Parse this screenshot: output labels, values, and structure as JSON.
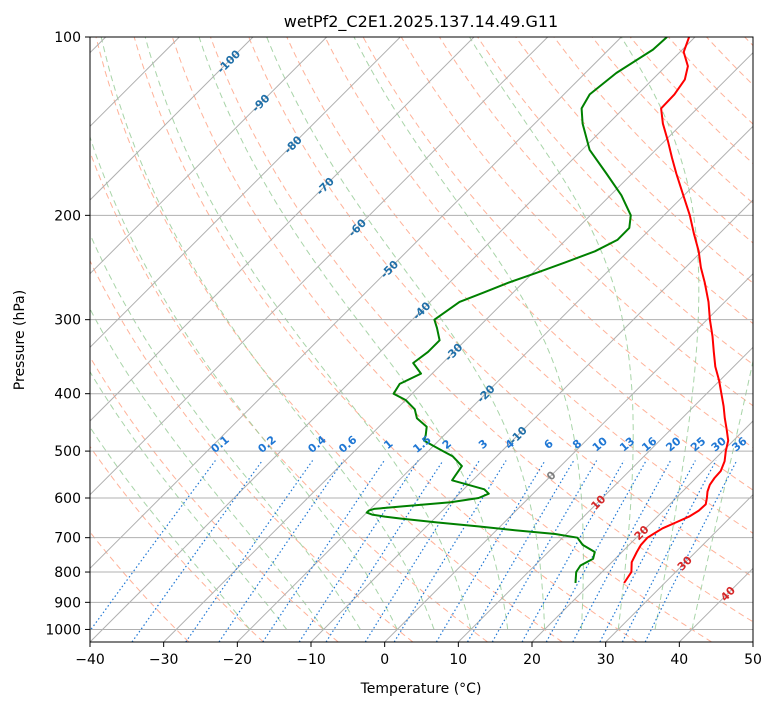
{
  "chart_data": {
    "type": "line",
    "title": "wetPf2_C2E1.2025.137.14.49.G11",
    "xlabel": "Temperature (°C)",
    "ylabel": "Pressure (hPa)",
    "xlim": [
      -40,
      50
    ],
    "ylim": [
      1050,
      100
    ],
    "y_scale": "log",
    "x_ticks": [
      -40,
      -30,
      -20,
      -10,
      0,
      10,
      20,
      30,
      40,
      50
    ],
    "y_ticks": [
      100,
      200,
      300,
      400,
      500,
      600,
      700,
      800,
      900,
      1000
    ],
    "grid": true,
    "skew_deg": 45,
    "colors": {
      "temperature": "#ff0000",
      "dewpoint": "#008000",
      "dry_adiabat": "#ff9f80",
      "moist_adiabat": "#99cc99",
      "mixing_ratio": "#1f77d4",
      "isotherm": "#7f7f7f",
      "isotherm_label_cold": "#1f6fa8",
      "isotherm_label_warm": "#d62728"
    },
    "series": [
      {
        "key": "temperature",
        "pressure": [
          835,
          800,
          770,
          740,
          720,
          700,
          690,
          675,
          660,
          645,
          630,
          615,
          600,
          585,
          570,
          555,
          540,
          520,
          500,
          480,
          460,
          440,
          420,
          400,
          380,
          360,
          340,
          320,
          300,
          280,
          260,
          245,
          230,
          215,
          200,
          185,
          170,
          160,
          150,
          140,
          132,
          125,
          118,
          112,
          106,
          100
        ],
        "values": [
          24.5,
          24.0,
          22.7,
          22.0,
          21.6,
          21.5,
          21.8,
          22.3,
          23.3,
          24.3,
          24.8,
          24.9,
          24.2,
          23.4,
          22.8,
          22.5,
          22.4,
          21.6,
          20.4,
          19.3,
          17.6,
          15.8,
          14.0,
          12.0,
          9.9,
          7.5,
          5.3,
          3.0,
          0.4,
          -2.2,
          -5.3,
          -7.9,
          -10.4,
          -13.4,
          -16.5,
          -20.1,
          -24.0,
          -26.7,
          -29.5,
          -32.6,
          -34.9,
          -35.0,
          -35.6,
          -37.0,
          -39.5,
          -40.8
        ]
      },
      {
        "key": "dewpoint",
        "pressure": [
          835,
          800,
          780,
          760,
          740,
          720,
          700,
          690,
          680,
          670,
          660,
          650,
          645,
          640,
          635,
          630,
          626,
          620,
          610,
          600,
          590,
          580,
          570,
          560,
          550,
          530,
          510,
          500,
          490,
          480,
          470,
          455,
          440,
          425,
          410,
          400,
          385,
          370,
          355,
          340,
          325,
          310,
          300,
          290,
          280,
          270,
          260,
          250,
          240,
          230,
          220,
          210,
          200,
          185,
          170,
          155,
          140,
          132,
          125,
          115,
          105,
          100
        ],
        "values": [
          17.9,
          16.5,
          16.2,
          17.0,
          16.3,
          13.7,
          12.0,
          8.5,
          2.5,
          -3.0,
          -9.0,
          -14.5,
          -17.0,
          -19.0,
          -20.0,
          -20.0,
          -19.5,
          -16.0,
          -10.0,
          -6.8,
          -6.0,
          -7.2,
          -10.0,
          -12.8,
          -13.0,
          -13.4,
          -16.0,
          -18.0,
          -20.0,
          -22.0,
          -22.5,
          -23.5,
          -26.0,
          -27.5,
          -30.0,
          -32.5,
          -33.0,
          -31.5,
          -34.0,
          -33.5,
          -33.5,
          -35.5,
          -37.0,
          -36.5,
          -36.0,
          -34.0,
          -32.0,
          -29.5,
          -27.0,
          -24.5,
          -23.0,
          -23.0,
          -24.5,
          -28.5,
          -33.5,
          -39.0,
          -43.5,
          -45.7,
          -46.5,
          -45.8,
          -44.0,
          -43.8
        ]
      }
    ],
    "isotherm_labels": [
      {
        "value": -100,
        "text": "-100"
      },
      {
        "value": -90,
        "text": "-90"
      },
      {
        "value": -80,
        "text": "-80"
      },
      {
        "value": -70,
        "text": "-70"
      },
      {
        "value": -60,
        "text": "-60"
      },
      {
        "value": -50,
        "text": "-50"
      },
      {
        "value": -40,
        "text": "-40"
      },
      {
        "value": -30,
        "text": "-30"
      },
      {
        "value": -20,
        "text": "-20"
      },
      {
        "value": -10,
        "text": "-10"
      },
      {
        "value": 0,
        "text": "0"
      },
      {
        "value": 10,
        "text": "10"
      },
      {
        "value": 20,
        "text": "20"
      },
      {
        "value": 30,
        "text": "30"
      },
      {
        "value": 40,
        "text": "40"
      }
    ],
    "mixing_ratio_lines": [
      {
        "value": 0.1,
        "text": "0.1"
      },
      {
        "value": 0.2,
        "text": "0.2"
      },
      {
        "value": 0.4,
        "text": "0.4"
      },
      {
        "value": 0.6,
        "text": "0.6"
      },
      {
        "value": 1,
        "text": "1"
      },
      {
        "value": 1.5,
        "text": "1.5"
      },
      {
        "value": 2,
        "text": "2"
      },
      {
        "value": 3,
        "text": "3"
      },
      {
        "value": 4,
        "text": "4"
      },
      {
        "value": 6,
        "text": "6"
      },
      {
        "value": 8,
        "text": "8"
      },
      {
        "value": 10,
        "text": "10"
      },
      {
        "value": 13,
        "text": "13"
      },
      {
        "value": 16,
        "text": "16"
      },
      {
        "value": 20,
        "text": "20"
      },
      {
        "value": 25,
        "text": "25"
      },
      {
        "value": 30,
        "text": "30"
      },
      {
        "value": 36,
        "text": "36"
      }
    ]
  }
}
